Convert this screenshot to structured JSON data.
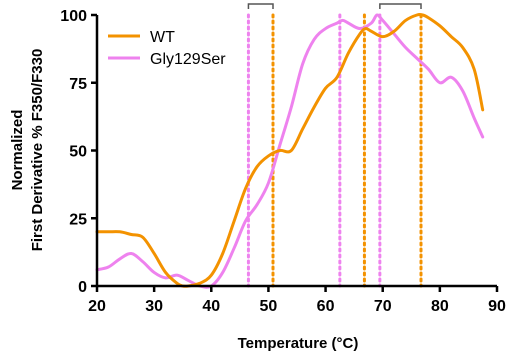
{
  "chart_data": {
    "type": "line",
    "xlabel": "Temperature (°C)",
    "ylabel_line1": "Normalized",
    "ylabel_line2": "First Derivative % F350/F330",
    "xlim": [
      20,
      90
    ],
    "ylim": [
      0,
      100
    ],
    "xticks": [
      20,
      30,
      40,
      50,
      60,
      70,
      80,
      90
    ],
    "yticks": [
      0,
      25,
      50,
      75,
      100
    ],
    "grid": false,
    "legend_position": "top-left",
    "series": [
      {
        "name": "WT",
        "color": "#F39200",
        "x": [
          20,
          22,
          24,
          26,
          28,
          30,
          32,
          34,
          35,
          36,
          38,
          40,
          42,
          44,
          46,
          48,
          50,
          52,
          54,
          56,
          58,
          60,
          62,
          64,
          66,
          67,
          68,
          70,
          72,
          74,
          76,
          77,
          78,
          80,
          82,
          84,
          86,
          87.5
        ],
        "y": [
          20,
          20,
          20,
          19,
          18,
          12,
          5,
          1,
          0,
          0,
          1,
          4,
          12,
          24,
          36,
          44,
          48,
          50,
          50,
          58,
          66,
          73,
          77,
          86,
          93,
          95,
          94,
          92,
          94,
          98,
          100,
          100,
          99,
          96,
          92,
          88,
          80,
          65
        ],
        "peaks": [
          50.8,
          66.8,
          76.7
        ]
      },
      {
        "name": "Gly129Ser",
        "color": "#EE82EE",
        "x": [
          20,
          22,
          24,
          26,
          28,
          30,
          32,
          34,
          36,
          38,
          40,
          42,
          44,
          46,
          48,
          50,
          52,
          54,
          56,
          58,
          60,
          62,
          63,
          64,
          66,
          68,
          69,
          70,
          72,
          74,
          76,
          78,
          80,
          82,
          84,
          86,
          87.5
        ],
        "y": [
          6,
          7,
          10,
          12,
          9,
          5,
          3,
          4,
          2,
          0,
          0,
          5,
          14,
          24,
          30,
          38,
          52,
          66,
          82,
          91,
          95,
          97,
          98,
          97,
          95,
          97,
          100,
          98,
          93,
          88,
          84,
          80,
          75,
          77,
          72,
          62,
          55
        ],
        "peaks": [
          46.5,
          62.5,
          69.5
        ]
      }
    ]
  }
}
